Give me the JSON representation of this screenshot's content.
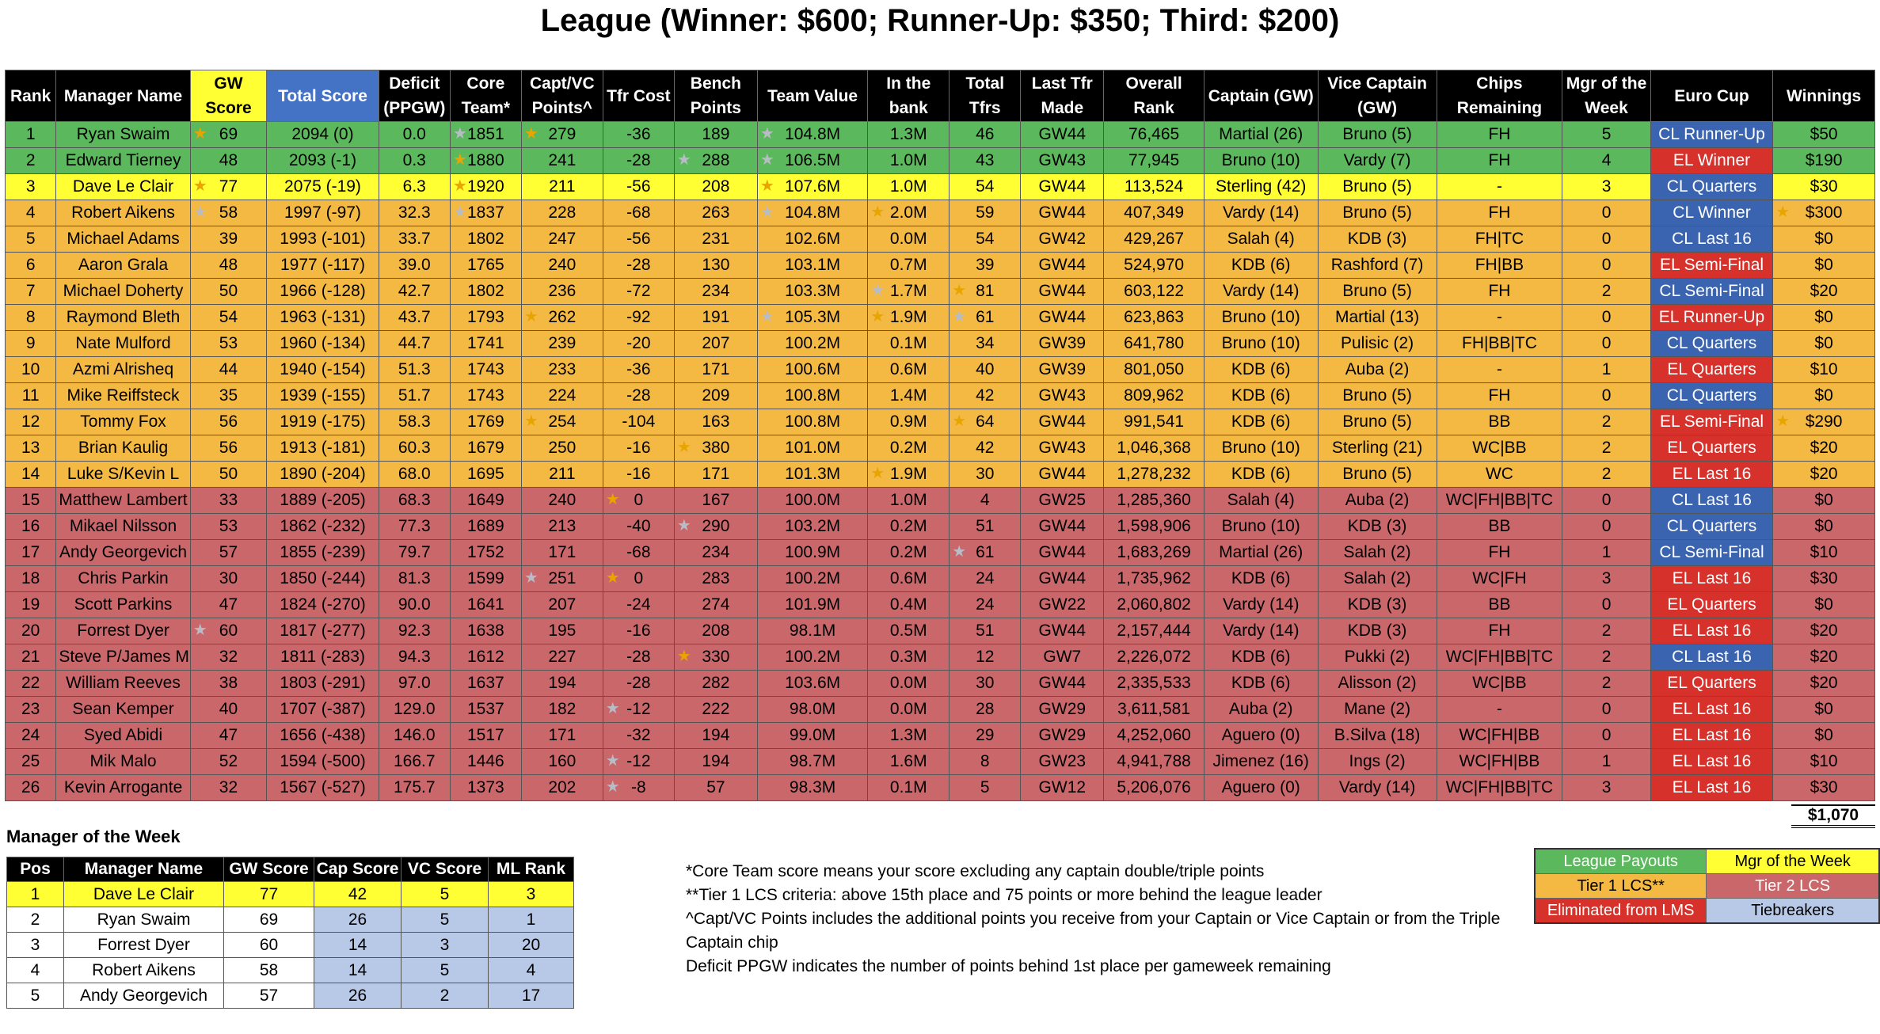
{
  "title": "League (Winner: $600; Runner-Up: $350; Third: $200)",
  "columns": [
    "Rank",
    "Manager Name",
    "GW Score",
    "Total Score",
    "Deficit (PPGW)",
    "Core Team*",
    "Capt/VC Points^",
    "Tfr Cost",
    "Bench Points",
    "Team Value",
    "In the bank",
    "Total Tfrs",
    "Last Tfr Made",
    "Overall Rank",
    "Captain (GW)",
    "Vice Captain (GW)",
    "Chips Remaining",
    "Mgr of the Week",
    "Euro Cup",
    "Winnings"
  ],
  "rows": [
    {
      "tier": "green",
      "c": [
        "1",
        "Ryan Swaim",
        "69",
        "2094 (0)",
        "0.0",
        "1851",
        "279",
        "-36",
        "189",
        "104.8M",
        "1.3M",
        "46",
        "GW44",
        "76,465",
        "Martial (26)",
        "Bruno (5)",
        "FH",
        "5",
        "CL Runner-Up",
        "$50"
      ],
      "stars": {
        "2": "gold",
        "5": "silver",
        "6": "gold",
        "9": "silver"
      },
      "cup": "cl"
    },
    {
      "tier": "green",
      "c": [
        "2",
        "Edward Tierney",
        "48",
        "2093 (-1)",
        "0.3",
        "1880",
        "241",
        "-28",
        "288",
        "106.5M",
        "1.0M",
        "43",
        "GW43",
        "77,945",
        "Bruno (10)",
        "Vardy (7)",
        "FH",
        "4",
        "EL Winner",
        "$190"
      ],
      "stars": {
        "5": "gold",
        "8": "silver",
        "9": "silver"
      },
      "cup": "el"
    },
    {
      "tier": "yellow",
      "c": [
        "3",
        "Dave Le Clair",
        "77",
        "2075 (-19)",
        "6.3",
        "1920",
        "211",
        "-56",
        "208",
        "107.6M",
        "1.0M",
        "54",
        "GW44",
        "113,524",
        "Sterling (42)",
        "Bruno (5)",
        "-",
        "3",
        "CL Quarters",
        "$30"
      ],
      "stars": {
        "2": "gold",
        "5": "gold",
        "9": "gold"
      },
      "cup": "cl"
    },
    {
      "tier": "orange",
      "c": [
        "4",
        "Robert Aikens",
        "58",
        "1997 (-97)",
        "32.3",
        "1837",
        "228",
        "-68",
        "263",
        "104.8M",
        "2.0M",
        "59",
        "GW44",
        "407,349",
        "Vardy (14)",
        "Bruno (5)",
        "FH",
        "0",
        "CL Winner",
        "$300"
      ],
      "stars": {
        "2": "silver",
        "5": "silver",
        "9": "silver",
        "10": "gold",
        "19": "gold"
      },
      "cup": "cl"
    },
    {
      "tier": "orange",
      "c": [
        "5",
        "Michael Adams",
        "39",
        "1993 (-101)",
        "33.7",
        "1802",
        "247",
        "-56",
        "231",
        "102.6M",
        "0.0M",
        "54",
        "GW42",
        "429,267",
        "Salah (4)",
        "KDB (3)",
        "FH|TC",
        "0",
        "CL Last 16",
        "$0"
      ],
      "stars": {},
      "cup": "cl"
    },
    {
      "tier": "orange",
      "c": [
        "6",
        "Aaron Grala",
        "48",
        "1977 (-117)",
        "39.0",
        "1765",
        "240",
        "-28",
        "130",
        "103.1M",
        "0.7M",
        "39",
        "GW44",
        "524,970",
        "KDB (6)",
        "Rashford (7)",
        "FH|BB",
        "0",
        "EL Semi-Final",
        "$0"
      ],
      "stars": {},
      "cup": "el"
    },
    {
      "tier": "orange",
      "c": [
        "7",
        "Michael Doherty",
        "50",
        "1966 (-128)",
        "42.7",
        "1802",
        "236",
        "-72",
        "234",
        "103.3M",
        "1.7M",
        "81",
        "GW44",
        "603,122",
        "Vardy (14)",
        "Bruno (5)",
        "FH",
        "2",
        "CL Semi-Final",
        "$20"
      ],
      "stars": {
        "10": "silver",
        "11": "gold"
      },
      "cup": "cl"
    },
    {
      "tier": "orange",
      "c": [
        "8",
        "Raymond Bleth",
        "54",
        "1963 (-131)",
        "43.7",
        "1793",
        "262",
        "-92",
        "191",
        "105.3M",
        "1.9M",
        "61",
        "GW44",
        "623,863",
        "Bruno (10)",
        "Martial (13)",
        "-",
        "0",
        "EL Runner-Up",
        "$0"
      ],
      "stars": {
        "6": "gold",
        "9": "silver",
        "10": "gold",
        "11": "silver"
      },
      "cup": "el"
    },
    {
      "tier": "orange",
      "c": [
        "9",
        "Nate Mulford",
        "53",
        "1960 (-134)",
        "44.7",
        "1741",
        "239",
        "-20",
        "207",
        "100.2M",
        "0.1M",
        "34",
        "GW39",
        "641,780",
        "Bruno (10)",
        "Pulisic (2)",
        "FH|BB|TC",
        "0",
        "CL Quarters",
        "$0"
      ],
      "stars": {},
      "cup": "cl"
    },
    {
      "tier": "orange",
      "c": [
        "10",
        "Azmi Alrisheq",
        "44",
        "1940 (-154)",
        "51.3",
        "1743",
        "233",
        "-36",
        "171",
        "100.6M",
        "0.6M",
        "40",
        "GW39",
        "801,050",
        "KDB (6)",
        "Auba (2)",
        "-",
        "1",
        "EL Quarters",
        "$10"
      ],
      "stars": {},
      "cup": "el"
    },
    {
      "tier": "orange",
      "c": [
        "11",
        "Mike Reiffsteck",
        "35",
        "1939 (-155)",
        "51.7",
        "1743",
        "224",
        "-28",
        "209",
        "100.8M",
        "1.4M",
        "42",
        "GW43",
        "809,962",
        "KDB (6)",
        "Bruno (5)",
        "FH",
        "0",
        "CL Quarters",
        "$0"
      ],
      "stars": {},
      "cup": "cl"
    },
    {
      "tier": "orange",
      "c": [
        "12",
        "Tommy Fox",
        "56",
        "1919 (-175)",
        "58.3",
        "1769",
        "254",
        "-104",
        "163",
        "100.8M",
        "0.9M",
        "64",
        "GW44",
        "991,541",
        "KDB (6)",
        "Bruno (5)",
        "BB",
        "2",
        "EL Semi-Final",
        "$290"
      ],
      "stars": {
        "6": "gold",
        "11": "gold",
        "19": "gold"
      },
      "cup": "el"
    },
    {
      "tier": "orange",
      "c": [
        "13",
        "Brian Kaulig",
        "56",
        "1913 (-181)",
        "60.3",
        "1679",
        "250",
        "-16",
        "380",
        "101.0M",
        "0.2M",
        "42",
        "GW43",
        "1,046,368",
        "Bruno (10)",
        "Sterling (21)",
        "WC|BB",
        "2",
        "EL Quarters",
        "$20"
      ],
      "stars": {
        "8": "gold"
      },
      "cup": "el"
    },
    {
      "tier": "orange",
      "c": [
        "14",
        "Luke S/Kevin L",
        "50",
        "1890 (-204)",
        "68.0",
        "1695",
        "211",
        "-16",
        "171",
        "101.3M",
        "1.9M",
        "30",
        "GW44",
        "1,278,232",
        "KDB (6)",
        "Bruno (5)",
        "WC",
        "2",
        "EL Last 16",
        "$20"
      ],
      "stars": {
        "10": "gold"
      },
      "cup": "el"
    },
    {
      "tier": "red",
      "c": [
        "15",
        "Matthew Lambert",
        "33",
        "1889 (-205)",
        "68.3",
        "1649",
        "240",
        "0",
        "167",
        "100.0M",
        "1.0M",
        "4",
        "GW25",
        "1,285,360",
        "Salah (4)",
        "Auba (2)",
        "WC|FH|BB|TC",
        "0",
        "CL Last 16",
        "$0"
      ],
      "stars": {
        "7": "gold"
      },
      "cup": "cl"
    },
    {
      "tier": "red",
      "c": [
        "16",
        "Mikael Nilsson",
        "53",
        "1862 (-232)",
        "77.3",
        "1689",
        "213",
        "-40",
        "290",
        "103.2M",
        "0.2M",
        "51",
        "GW44",
        "1,598,906",
        "Bruno (10)",
        "KDB (3)",
        "BB",
        "0",
        "CL Quarters",
        "$0"
      ],
      "stars": {
        "8": "silver"
      },
      "cup": "cl"
    },
    {
      "tier": "red",
      "c": [
        "17",
        "Andy Georgevich",
        "57",
        "1855 (-239)",
        "79.7",
        "1752",
        "171",
        "-68",
        "234",
        "100.9M",
        "0.2M",
        "61",
        "GW44",
        "1,683,269",
        "Martial (26)",
        "Salah (2)",
        "FH",
        "1",
        "CL Semi-Final",
        "$10"
      ],
      "stars": {
        "11": "silver"
      },
      "cup": "cl"
    },
    {
      "tier": "red",
      "c": [
        "18",
        "Chris Parkin",
        "30",
        "1850 (-244)",
        "81.3",
        "1599",
        "251",
        "0",
        "283",
        "100.2M",
        "0.6M",
        "24",
        "GW44",
        "1,735,962",
        "KDB (6)",
        "Salah (2)",
        "WC|FH",
        "3",
        "EL Last 16",
        "$30"
      ],
      "stars": {
        "6": "silver",
        "7": "gold"
      },
      "cup": "el"
    },
    {
      "tier": "red",
      "c": [
        "19",
        "Scott Parkins",
        "47",
        "1824 (-270)",
        "90.0",
        "1641",
        "207",
        "-24",
        "274",
        "101.9M",
        "0.4M",
        "24",
        "GW22",
        "2,060,802",
        "Vardy (14)",
        "KDB (3)",
        "BB",
        "0",
        "EL Quarters",
        "$0"
      ],
      "stars": {},
      "cup": "el"
    },
    {
      "tier": "red",
      "c": [
        "20",
        "Forrest Dyer",
        "60",
        "1817 (-277)",
        "92.3",
        "1638",
        "195",
        "-16",
        "208",
        "98.1M",
        "0.5M",
        "51",
        "GW44",
        "2,157,444",
        "Vardy (14)",
        "KDB (3)",
        "FH",
        "2",
        "EL Last 16",
        "$20"
      ],
      "stars": {
        "2": "silver"
      },
      "cup": "el"
    },
    {
      "tier": "red",
      "c": [
        "21",
        "Steve P/James M",
        "32",
        "1811 (-283)",
        "94.3",
        "1612",
        "227",
        "-28",
        "330",
        "100.2M",
        "0.3M",
        "12",
        "GW7",
        "2,226,072",
        "KDB (6)",
        "Pukki (2)",
        "WC|FH|BB|TC",
        "2",
        "CL Last 16",
        "$20"
      ],
      "stars": {
        "8": "gold"
      },
      "cup": "cl"
    },
    {
      "tier": "red",
      "c": [
        "22",
        "William Reeves",
        "38",
        "1803 (-291)",
        "97.0",
        "1637",
        "194",
        "-28",
        "282",
        "103.6M",
        "0.0M",
        "30",
        "GW44",
        "2,335,533",
        "KDB (6)",
        "Alisson (2)",
        "WC|BB",
        "2",
        "EL Quarters",
        "$20"
      ],
      "stars": {},
      "cup": "el"
    },
    {
      "tier": "red",
      "c": [
        "23",
        "Sean Kemper",
        "40",
        "1707 (-387)",
        "129.0",
        "1537",
        "182",
        "-12",
        "222",
        "98.0M",
        "0.0M",
        "28",
        "GW29",
        "3,611,581",
        "Auba (2)",
        "Mane (2)",
        "-",
        "0",
        "EL Last 16",
        "$0"
      ],
      "stars": {
        "7": "silver"
      },
      "cup": "el"
    },
    {
      "tier": "red",
      "c": [
        "24",
        "Syed Abidi",
        "47",
        "1656 (-438)",
        "146.0",
        "1517",
        "171",
        "-32",
        "194",
        "99.0M",
        "1.3M",
        "29",
        "GW29",
        "4,252,060",
        "Aguero (0)",
        "B.Silva (18)",
        "WC|FH|BB",
        "0",
        "EL Last 16",
        "$0"
      ],
      "stars": {},
      "cup": "el"
    },
    {
      "tier": "red",
      "c": [
        "25",
        "Mik Malo",
        "52",
        "1594 (-500)",
        "166.7",
        "1446",
        "160",
        "-12",
        "194",
        "98.7M",
        "1.6M",
        "8",
        "GW23",
        "4,941,788",
        "Jimenez (16)",
        "Ings (2)",
        "WC|FH|BB",
        "1",
        "EL Last 16",
        "$10"
      ],
      "stars": {
        "7": "silver"
      },
      "cup": "el"
    },
    {
      "tier": "red",
      "c": [
        "26",
        "Kevin Arrogante",
        "32",
        "1567 (-527)",
        "175.7",
        "1373",
        "202",
        "-8",
        "57",
        "98.3M",
        "0.1M",
        "5",
        "GW12",
        "5,206,076",
        "Aguero (0)",
        "Vardy (14)",
        "WC|FH|BB|TC",
        "3",
        "EL Last 16",
        "$30"
      ],
      "stars": {
        "7": "silver"
      },
      "cup": "el"
    }
  ],
  "winnings_total": "$1,070",
  "motw": {
    "title": "Manager of the Week",
    "columns": [
      "Pos",
      "Manager Name",
      "GW Score",
      "Cap Score",
      "VC Score",
      "ML Rank"
    ],
    "rows": [
      [
        "1",
        "Dave Le Clair",
        "77",
        "42",
        "5",
        "3"
      ],
      [
        "2",
        "Ryan Swaim",
        "69",
        "26",
        "5",
        "1"
      ],
      [
        "3",
        "Forrest Dyer",
        "60",
        "14",
        "3",
        "20"
      ],
      [
        "4",
        "Robert Aikens",
        "58",
        "14",
        "5",
        "4"
      ],
      [
        "5",
        "Andy Georgevich",
        "57",
        "26",
        "2",
        "17"
      ]
    ]
  },
  "notes": [
    "*Core Team score means your score excluding any captain double/triple points",
    "**Tier 1 LCS criteria: above 15th place and 75 points or more behind the league leader",
    "^Capt/VC Points includes the additional points you receive from your Captain or Vice Captain or from the Triple Captain chip",
    "Deficit PPGW indicates the number of points behind 1st place per gameweek remaining"
  ],
  "legend": [
    [
      {
        "label": "League Payouts",
        "bg": "#5cb85c",
        "fg": "#ffffff"
      },
      {
        "label": "Mgr of the Week",
        "bg": "#ffff33",
        "fg": "#000000"
      }
    ],
    [
      {
        "label": "Tier 1 LCS**",
        "bg": "#f4b942",
        "fg": "#000000"
      },
      {
        "label": "Tier 2 LCS",
        "bg": "#c9676a",
        "fg": "#ffffff"
      }
    ],
    [
      {
        "label": "Eliminated from LMS",
        "bg": "#d7312b",
        "fg": "#ffffff"
      },
      {
        "label": "Tiebreakers",
        "bg": "#b8c9e8",
        "fg": "#000000"
      }
    ]
  ],
  "colors": {
    "green": "#5cb85c",
    "yellow": "#ffff33",
    "orange": "#f4b942",
    "red": "#c9676a",
    "cl": "#3a64b0",
    "el": "#d7312b",
    "gold_star": "#e8a500",
    "silver_star": "#b8bcc6"
  }
}
